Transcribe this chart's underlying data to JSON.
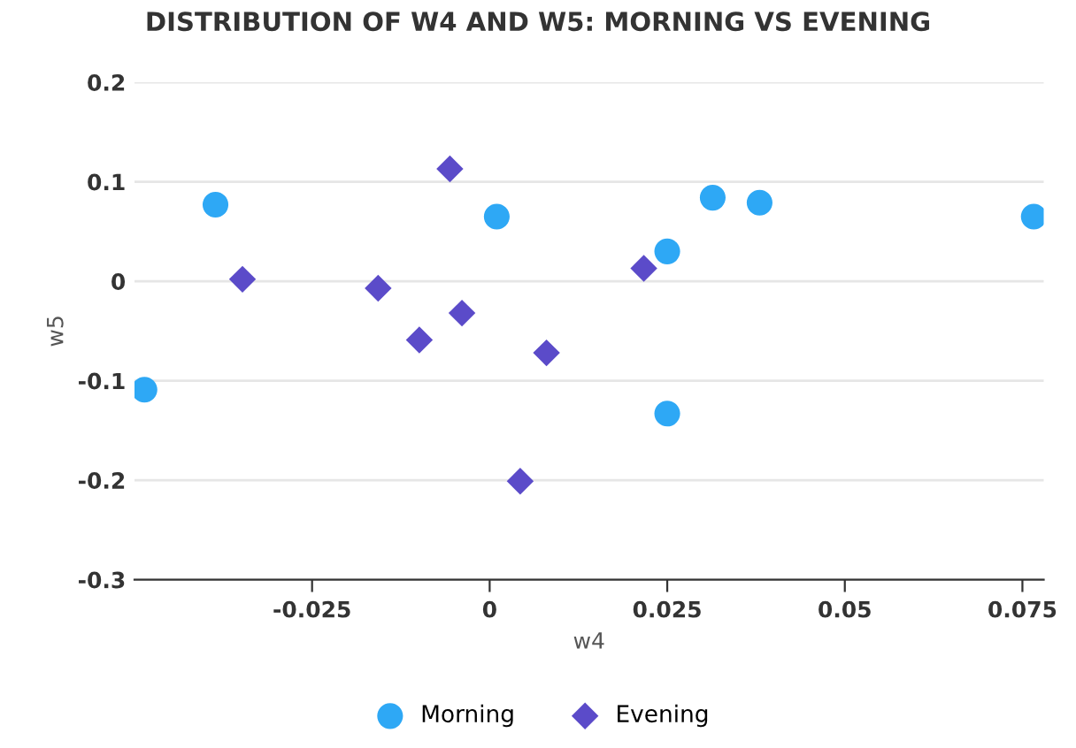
{
  "chart_data": {
    "type": "scatter",
    "title": "DISTRIBUTION OF W4 AND W5: MORNING VS EVENING",
    "xlabel": "w4",
    "ylabel": "w5",
    "xlim": [
      -0.05,
      0.078
    ],
    "xticks": [
      -0.025,
      0,
      0.025,
      0.05,
      0.075
    ],
    "ylim": [
      -0.3,
      0.2
    ],
    "yticks": [
      -0.3,
      -0.2,
      -0.1,
      0,
      0.1,
      0.2
    ],
    "grid": "y",
    "legend": "bottom",
    "series": [
      {
        "name": "Morning",
        "color": "#2ea8f5",
        "marker": "circle",
        "x": [
          -0.0486,
          -0.0386,
          0.001,
          0.025,
          0.025,
          0.0314,
          0.038,
          0.0766
        ],
        "values": [
          -0.109,
          0.077,
          0.065,
          0.03,
          -0.133,
          0.084,
          0.079,
          0.065
        ]
      },
      {
        "name": "Evening",
        "color": "#5b4bc9",
        "marker": "diamond",
        "x": [
          -0.0348,
          -0.0157,
          -0.0099,
          -0.0056,
          -0.0039,
          0.008,
          0.0043,
          0.0217
        ],
        "values": [
          0.002,
          -0.007,
          -0.059,
          0.113,
          -0.032,
          -0.072,
          -0.201,
          0.013
        ]
      }
    ]
  }
}
